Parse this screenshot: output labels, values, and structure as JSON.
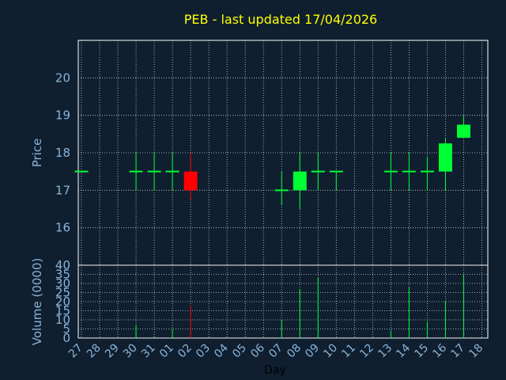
{
  "chart_data": {
    "type": "candlestick",
    "title": "PEB - last updated 17/04/2026",
    "xlabel": "Day",
    "ylabel_price": "Price",
    "ylabel_volume": "Volume (0000)",
    "days": [
      "27",
      "28",
      "29",
      "30",
      "31",
      "01",
      "02",
      "03",
      "04",
      "05",
      "06",
      "07",
      "08",
      "09",
      "10",
      "11",
      "12",
      "13",
      "14",
      "15",
      "16",
      "17",
      "18"
    ],
    "price_ylim": [
      15,
      21
    ],
    "price_ticks": [
      "16",
      "17",
      "18",
      "19",
      "20"
    ],
    "volume_ylim": [
      0,
      40
    ],
    "volume_ticks": [
      "0",
      "5",
      "10",
      "15",
      "20",
      "25",
      "30",
      "35",
      "40"
    ],
    "grid": true,
    "colors": {
      "up": "#00ff33",
      "down": "#ff0000",
      "flat": "#00ff33",
      "background": "#0f1f30",
      "axes": "#ffffff",
      "title": "#ffff00",
      "labels": "#8ab4d8"
    },
    "candles": [
      {
        "day": "27",
        "open": 17.5,
        "high": 17.5,
        "low": 17.5,
        "close": 17.5,
        "volume": 0
      },
      {
        "day": "30",
        "open": 17.5,
        "high": 18.0,
        "low": 17.0,
        "close": 17.5,
        "volume": 7
      },
      {
        "day": "31",
        "open": 17.5,
        "high": 18.0,
        "low": 17.0,
        "close": 17.5,
        "volume": 1
      },
      {
        "day": "01",
        "open": 17.5,
        "high": 18.0,
        "low": 17.0,
        "close": 17.5,
        "volume": 5
      },
      {
        "day": "02",
        "open": 17.5,
        "high": 18.0,
        "low": 16.75,
        "close": 17.0,
        "volume": 18
      },
      {
        "day": "07",
        "open": 17.0,
        "high": 17.5,
        "low": 16.6,
        "close": 17.0,
        "volume": 10
      },
      {
        "day": "08",
        "open": 17.0,
        "high": 18.0,
        "low": 16.5,
        "close": 17.5,
        "volume": 27
      },
      {
        "day": "09",
        "open": 17.5,
        "high": 18.0,
        "low": 17.0,
        "close": 17.5,
        "volume": 33
      },
      {
        "day": "10",
        "open": 17.5,
        "high": 17.5,
        "low": 17.0,
        "close": 17.5,
        "volume": 0
      },
      {
        "day": "13",
        "open": 17.5,
        "high": 18.0,
        "low": 17.0,
        "close": 17.5,
        "volume": 4
      },
      {
        "day": "14",
        "open": 17.5,
        "high": 18.0,
        "low": 17.0,
        "close": 17.5,
        "volume": 28
      },
      {
        "day": "15",
        "open": 17.5,
        "high": 17.9,
        "low": 17.0,
        "close": 17.5,
        "volume": 9
      },
      {
        "day": "16",
        "open": 17.5,
        "high": 18.4,
        "low": 17.0,
        "close": 18.25,
        "volume": 20
      },
      {
        "day": "17",
        "open": 18.4,
        "high": 19.0,
        "low": 18.4,
        "close": 18.75,
        "volume": 35
      }
    ]
  }
}
